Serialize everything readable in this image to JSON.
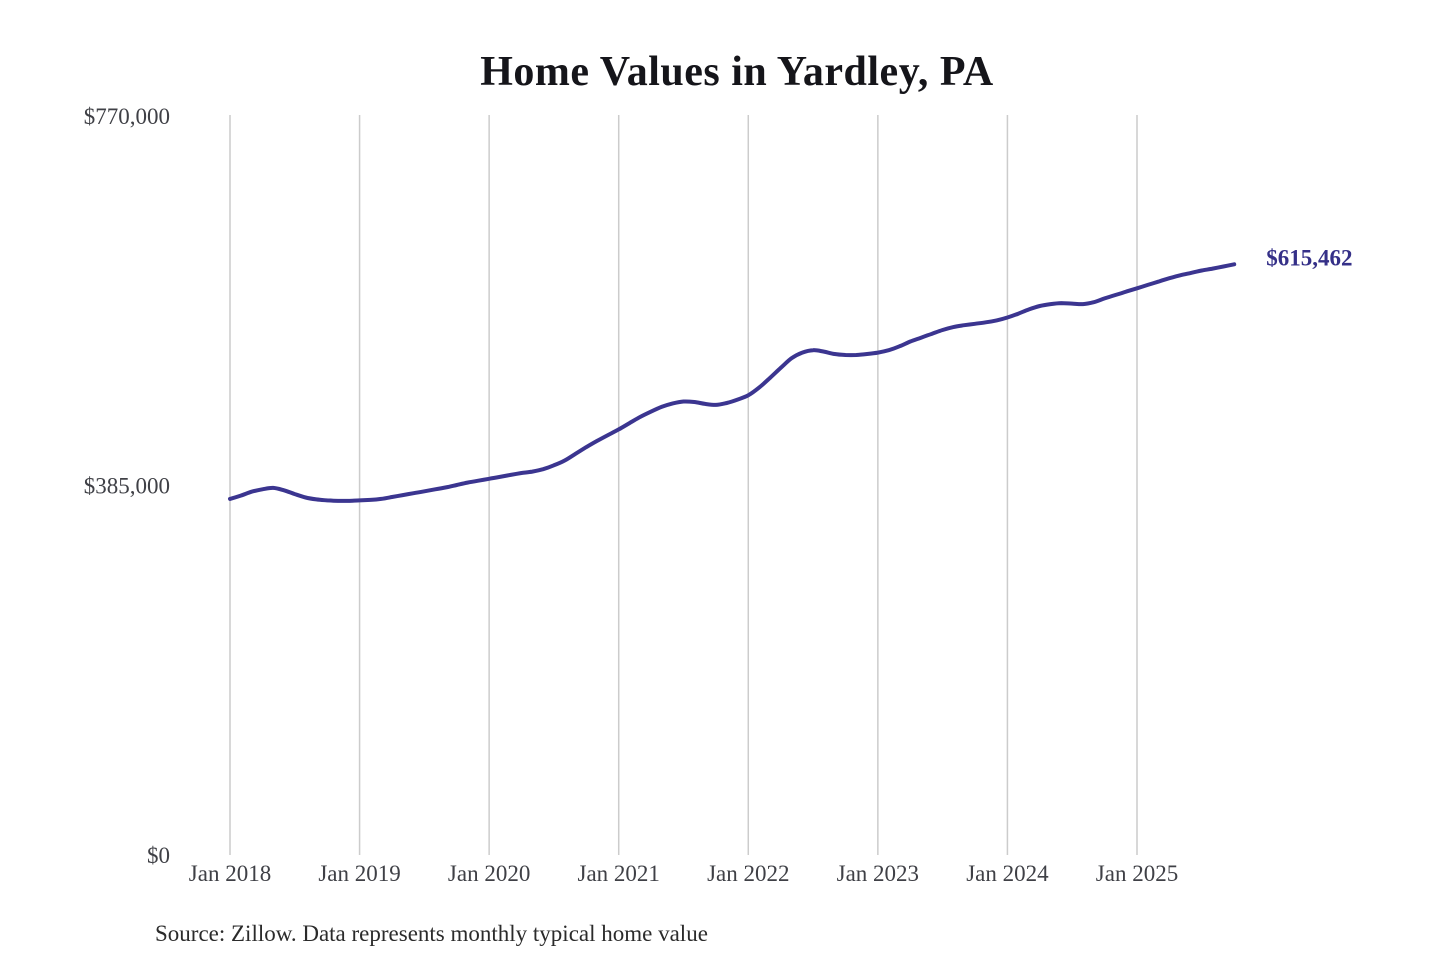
{
  "source_note": "Source: Zillow. Data represents monthly typical home value",
  "colors": {
    "background": "#ffffff",
    "line": "#3b3590",
    "annotation_text": "#353088",
    "gridline": "#cccccc",
    "title_text": "#15151a",
    "axis_label_text": "#3f4046",
    "source_text": "#2b2b2b"
  },
  "chart_data": {
    "type": "line",
    "title": "Home Values in Yardley, PA",
    "xlabel": "",
    "ylabel": "",
    "ylim": [
      0,
      770000
    ],
    "y_ticks": [
      0,
      385000,
      770000
    ],
    "y_tick_labels": [
      "$0",
      "$385,000",
      "$770,000"
    ],
    "x_tick_labels": [
      "Jan 2018",
      "Jan 2019",
      "Jan 2020",
      "Jan 2021",
      "Jan 2022",
      "Jan 2023",
      "Jan 2024",
      "Jan 2025"
    ],
    "grid": "vertical-only",
    "legend": "none",
    "annotation": {
      "text": "$615,462",
      "value": 615462,
      "month": "2025-10"
    },
    "series": [
      {
        "name": "Monthly typical home value",
        "x": [
          "2018-01",
          "2018-02",
          "2018-03",
          "2018-04",
          "2018-05",
          "2018-06",
          "2018-07",
          "2018-08",
          "2018-09",
          "2018-10",
          "2018-11",
          "2018-12",
          "2019-01",
          "2019-02",
          "2019-03",
          "2019-04",
          "2019-05",
          "2019-06",
          "2019-07",
          "2019-08",
          "2019-09",
          "2019-10",
          "2019-11",
          "2019-12",
          "2020-01",
          "2020-02",
          "2020-03",
          "2020-04",
          "2020-05",
          "2020-06",
          "2020-07",
          "2020-08",
          "2020-09",
          "2020-10",
          "2020-11",
          "2020-12",
          "2021-01",
          "2021-02",
          "2021-03",
          "2021-04",
          "2021-05",
          "2021-06",
          "2021-07",
          "2021-08",
          "2021-09",
          "2021-10",
          "2021-11",
          "2021-12",
          "2022-01",
          "2022-02",
          "2022-03",
          "2022-04",
          "2022-05",
          "2022-06",
          "2022-07",
          "2022-08",
          "2022-09",
          "2022-10",
          "2022-11",
          "2022-12",
          "2023-01",
          "2023-02",
          "2023-03",
          "2023-04",
          "2023-05",
          "2023-06",
          "2023-07",
          "2023-08",
          "2023-09",
          "2023-10",
          "2023-11",
          "2023-12",
          "2024-01",
          "2024-02",
          "2024-03",
          "2024-04",
          "2024-05",
          "2024-06",
          "2024-07",
          "2024-08",
          "2024-09",
          "2024-10",
          "2024-11",
          "2024-12",
          "2025-01",
          "2025-02",
          "2025-03",
          "2025-04",
          "2025-05",
          "2025-06",
          "2025-07",
          "2025-08",
          "2025-09",
          "2025-10"
        ],
        "values": [
          371000,
          374500,
          378500,
          381000,
          382500,
          380000,
          376000,
          372500,
          370500,
          369500,
          369000,
          369000,
          369500,
          370000,
          371000,
          373000,
          375000,
          377000,
          379000,
          381000,
          383000,
          385500,
          388000,
          390000,
          392000,
          394000,
          396000,
          398000,
          399500,
          402000,
          406000,
          411000,
          418000,
          425000,
          431500,
          437500,
          443500,
          450000,
          456500,
          462000,
          467000,
          470500,
          472500,
          472000,
          470000,
          469000,
          471000,
          474500,
          479000,
          487000,
          497000,
          507500,
          517500,
          523500,
          526000,
          524500,
          522000,
          521000,
          521000,
          522000,
          523500,
          526000,
          530000,
          535000,
          539000,
          543000,
          547000,
          550000,
          552000,
          553500,
          555000,
          557000,
          560000,
          564000,
          568500,
          572000,
          574000,
          575000,
          574500,
          574000,
          576000,
          580000,
          583500,
          587000,
          590500,
          594000,
          597500,
          601000,
          604000,
          606500,
          609000,
          611000,
          613200,
          615462
        ]
      }
    ]
  }
}
